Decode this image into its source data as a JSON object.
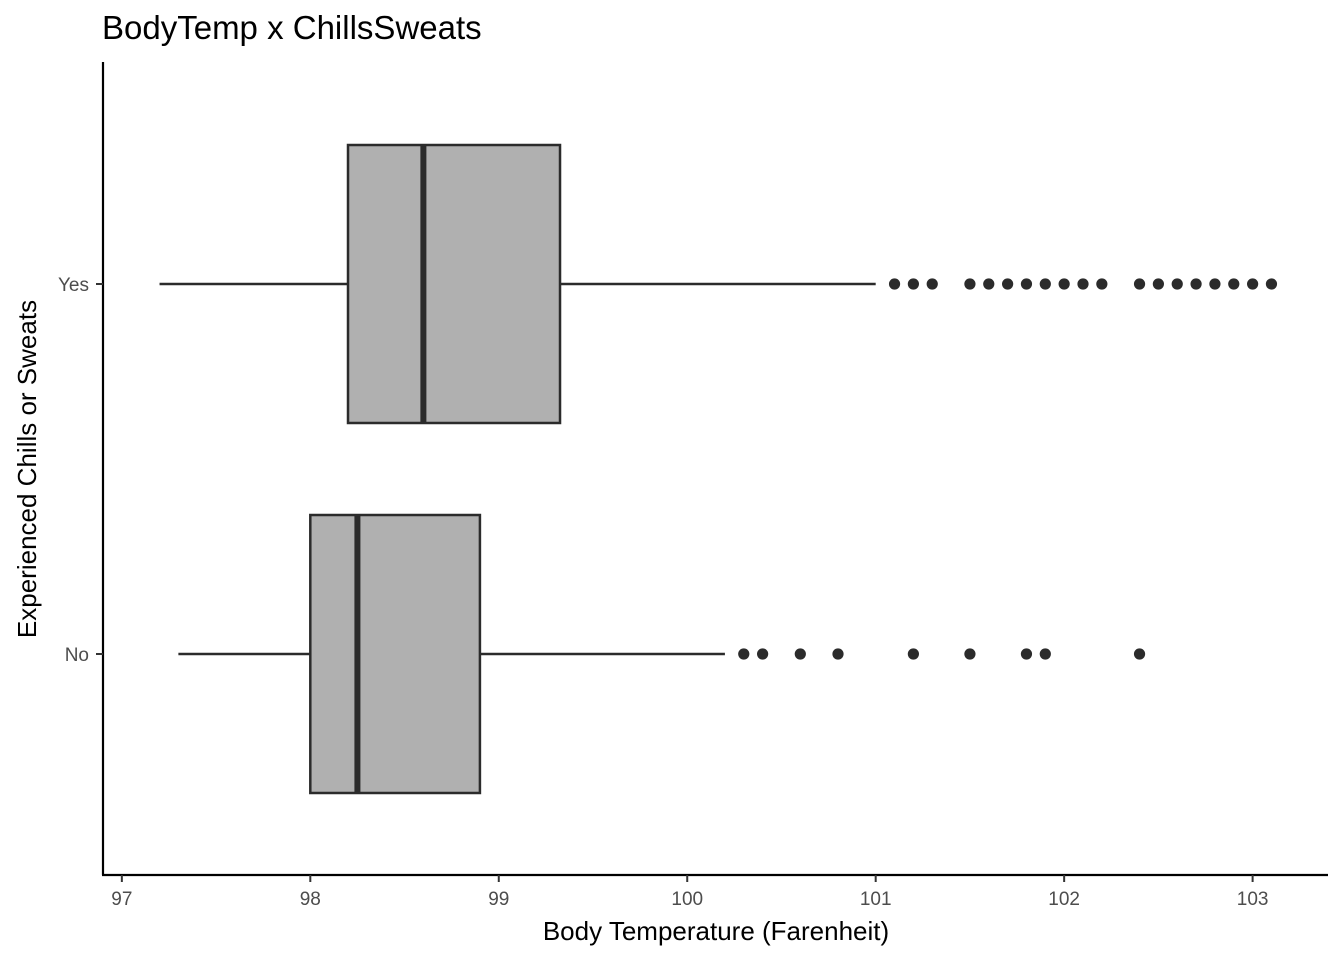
{
  "chart_data": {
    "type": "boxplot",
    "orientation": "horizontal",
    "title": "BodyTemp x ChillsSweats",
    "xlabel": "Body Temperature (Farenheit)",
    "ylabel": "Experienced Chills or Sweats",
    "xlim": [
      96.9,
      103.4
    ],
    "xticks": [
      97,
      98,
      99,
      100,
      101,
      102,
      103
    ],
    "categories": [
      "No",
      "Yes"
    ],
    "grid": false,
    "legend": "none",
    "colors": {
      "box_fill": "#b0b0b0",
      "stroke": "#2b2b2b",
      "outlier": "#2b2b2b"
    },
    "series": [
      {
        "category": "No",
        "whisker_low": 97.3,
        "q1": 98.0,
        "median": 98.25,
        "q3": 98.9,
        "whisker_high": 100.2,
        "outliers": [
          100.3,
          100.4,
          100.6,
          100.8,
          101.2,
          101.5,
          101.8,
          101.9,
          102.4
        ]
      },
      {
        "category": "Yes",
        "whisker_low": 97.2,
        "q1": 98.2,
        "median": 98.6,
        "q3": 99.325,
        "whisker_high": 101.0,
        "outliers": [
          101.1,
          101.2,
          101.3,
          101.5,
          101.6,
          101.7,
          101.8,
          101.9,
          102.0,
          102.1,
          102.2,
          102.4,
          102.5,
          102.6,
          102.7,
          102.8,
          102.9,
          103.0,
          103.1
        ]
      }
    ]
  }
}
